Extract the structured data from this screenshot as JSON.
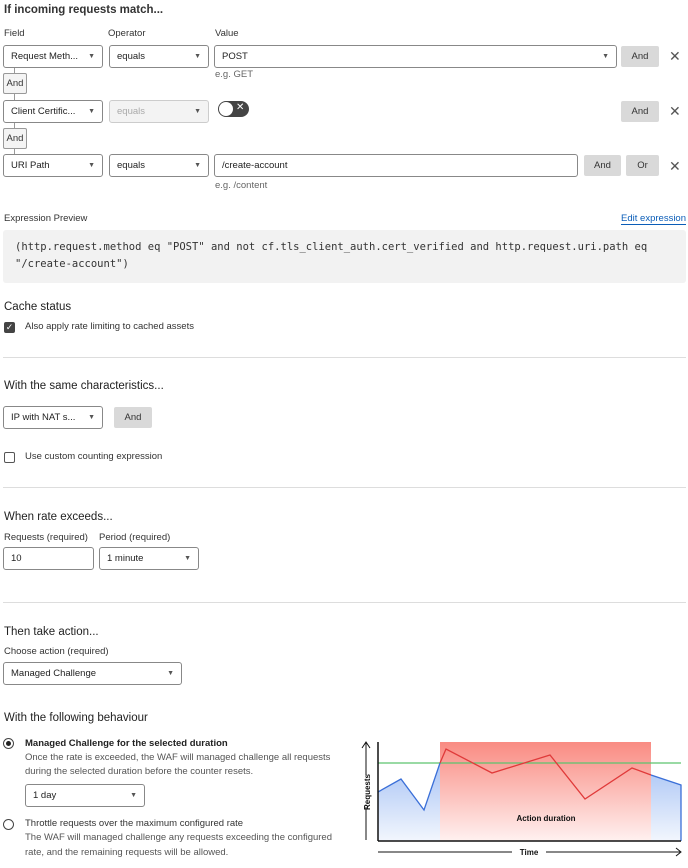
{
  "match": {
    "title": "If incoming requests match...",
    "col_field": "Field",
    "col_operator": "Operator",
    "col_value": "Value",
    "rows": [
      {
        "field": "Request Meth...",
        "operator": "equals",
        "value": "POST",
        "hint": "e.g. GET",
        "and": "And"
      },
      {
        "field": "Client Certific...",
        "operator": "equals",
        "toggle": false,
        "and": "And"
      },
      {
        "field": "URI Path",
        "operator": "equals",
        "value": "/create-account",
        "hint": "e.g. /content",
        "and": "And",
        "or": "Or"
      }
    ],
    "connector": "And"
  },
  "expression": {
    "label": "Expression Preview",
    "edit": "Edit expression",
    "line1": "(http.request.method eq \"POST\" and not cf.tls_client_auth.cert_verified and http.request.uri.path eq",
    "line2": "\"/create-account\")"
  },
  "cache": {
    "title": "Cache status",
    "checkbox": "Also apply rate limiting to cached assets",
    "checked": true
  },
  "characteristics": {
    "title": "With the same characteristics...",
    "select": "IP with NAT s...",
    "and": "And",
    "custom": "Use custom counting expression",
    "custom_checked": false
  },
  "rate": {
    "title": "When rate exceeds...",
    "requests_label": "Requests (required)",
    "requests": "10",
    "period_label": "Period (required)",
    "period": "1 minute"
  },
  "action": {
    "title": "Then take action...",
    "label": "Choose action (required)",
    "value": "Managed Challenge"
  },
  "behaviour": {
    "title": "With the following behaviour",
    "opt1_title": "Managed Challenge for the selected duration",
    "opt1_l1": "Once the rate is exceeded, the WAF will managed challenge all requests",
    "opt1_l2": "during the selected duration before the counter resets.",
    "duration": "1 day",
    "opt2_title": "Throttle requests over the maximum configured rate",
    "opt2_l1": "The WAF will managed challenge any requests exceeding the configured",
    "opt2_l2": "rate, and the remaining requests will be allowed.",
    "selected": 1
  },
  "illustration": {
    "y_label": "Requests",
    "x_label": "Time",
    "band_label": "Action duration",
    "colors": {
      "band": "#f98b82",
      "line_red": "#e03a3a",
      "line_blue": "#3a6fd8",
      "threshold": "#5cc46e"
    }
  },
  "colors": {
    "link": "#0a5db8"
  }
}
